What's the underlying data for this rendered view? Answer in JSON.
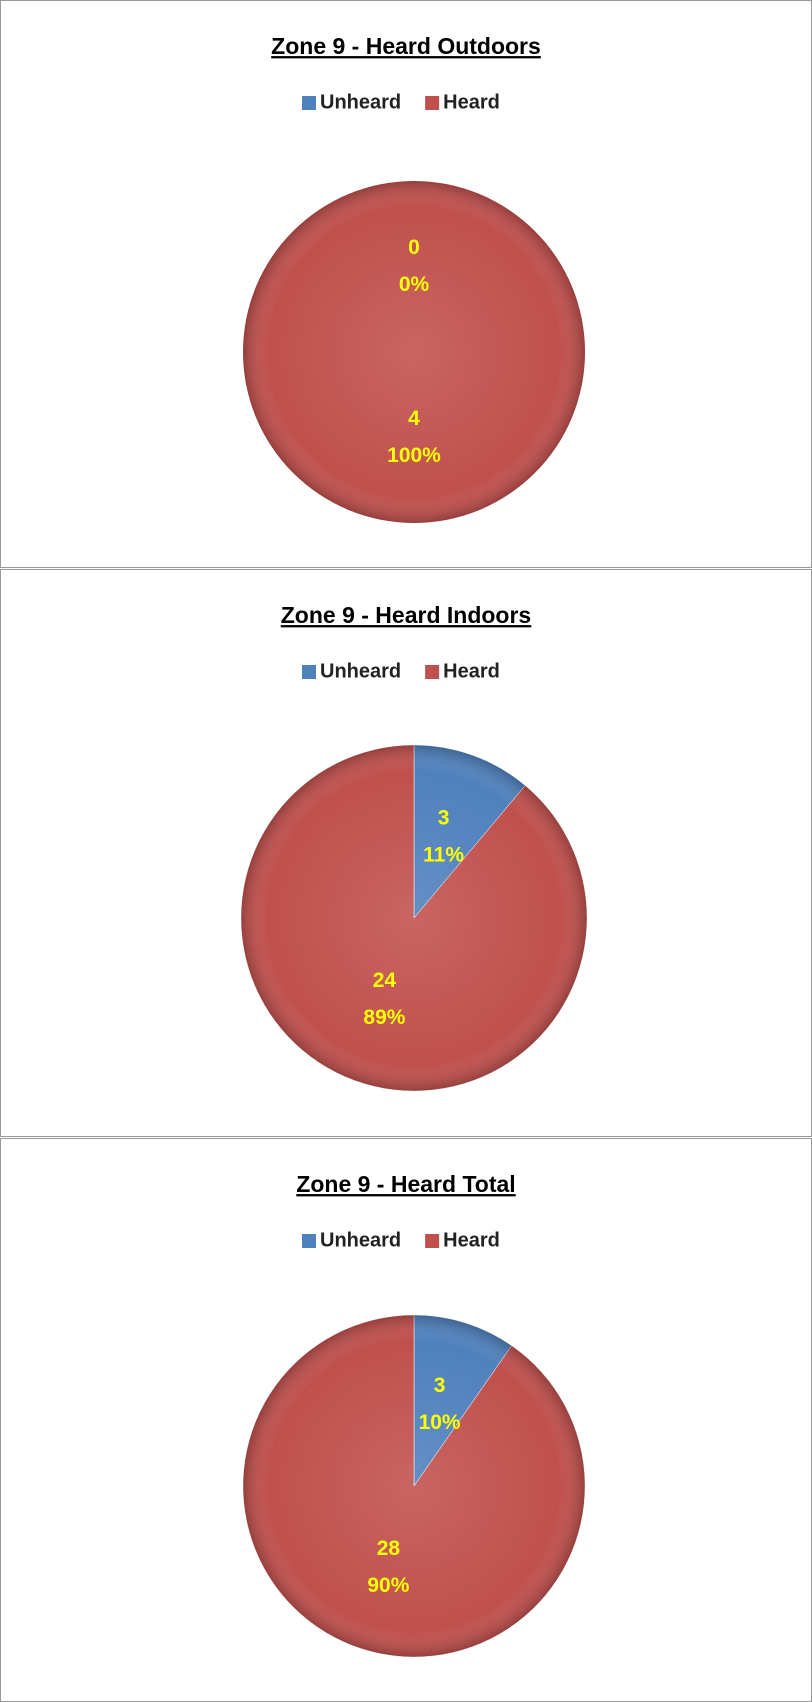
{
  "chart_data": [
    {
      "type": "pie",
      "title": "Zone 9 - Heard Outdoors",
      "categories": [
        "Unheard",
        "Heard"
      ],
      "values": [
        0,
        4
      ],
      "percent_labels": [
        "0%",
        "100%"
      ],
      "colors": [
        "#4f81bd",
        "#c0504d"
      ],
      "legend": "top"
    },
    {
      "type": "pie",
      "title": "Zone 9 - Heard Indoors",
      "categories": [
        "Unheard",
        "Heard"
      ],
      "values": [
        3,
        24
      ],
      "percent_labels": [
        "11%",
        "89%"
      ],
      "colors": [
        "#4f81bd",
        "#c0504d"
      ],
      "legend": "top"
    },
    {
      "type": "pie",
      "title": "Zone 9 - Heard Total",
      "categories": [
        "Unheard",
        "Heard"
      ],
      "values": [
        3,
        28
      ],
      "percent_labels": [
        "10%",
        "90%"
      ],
      "colors": [
        "#4f81bd",
        "#c0504d"
      ],
      "legend": "top"
    }
  ]
}
